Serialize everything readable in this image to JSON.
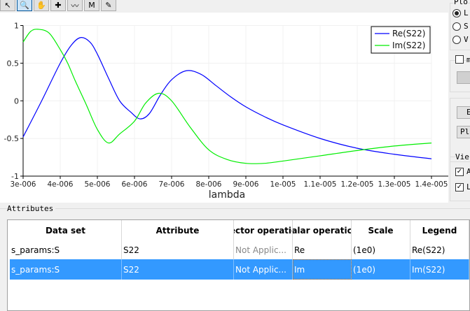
{
  "toolbar": {
    "tools": [
      {
        "name": "pointer",
        "glyph": "↖"
      },
      {
        "name": "zoom",
        "glyph": "🔍",
        "active": true
      },
      {
        "name": "pan",
        "glyph": "✋"
      },
      {
        "name": "zoom-box",
        "glyph": "✚"
      },
      {
        "name": "plot-style",
        "glyph": "〰"
      },
      {
        "name": "marker",
        "glyph": "M"
      },
      {
        "name": "pencil",
        "glyph": "✎"
      }
    ]
  },
  "chart_data": {
    "type": "line",
    "xlabel": "lambda",
    "ylabel": "",
    "xlim": [
      3e-06,
      1.4e-05
    ],
    "ylim": [
      -1,
      1
    ],
    "xticks": [
      "3e-006",
      "4e-006",
      "5e-006",
      "6e-006",
      "7e-006",
      "8e-006",
      "9e-006",
      "1e-005",
      "1.1e-005",
      "1.2e-005",
      "1.3e-005",
      "1.4e-005"
    ],
    "yticks": [
      "1",
      "0.5",
      "0",
      "-0.5",
      "-1"
    ],
    "grid": true,
    "legend": "top-right",
    "series": [
      {
        "name": "Re(S22)",
        "color": "#0000ff",
        "x": [
          3e-06,
          3.5e-06,
          4e-06,
          4.3e-06,
          4.55e-06,
          4.8e-06,
          5e-06,
          5.3e-06,
          5.6e-06,
          5.9e-06,
          6.15e-06,
          6.4e-06,
          6.7e-06,
          7e-06,
          7.4e-06,
          7.8e-06,
          8.2e-06,
          8.6e-06,
          9e-06,
          9.5e-06,
          1e-05,
          1.1e-05,
          1.2e-05,
          1.3e-05,
          1.4e-05
        ],
        "y": [
          -0.48,
          0.0,
          0.5,
          0.74,
          0.84,
          0.78,
          0.62,
          0.3,
          0.0,
          -0.15,
          -0.24,
          -0.17,
          0.08,
          0.28,
          0.4,
          0.35,
          0.2,
          0.05,
          -0.08,
          -0.21,
          -0.32,
          -0.5,
          -0.63,
          -0.71,
          -0.77
        ]
      },
      {
        "name": "Im(S22)",
        "color": "#00ee00",
        "x": [
          3e-06,
          3.2e-06,
          3.4e-06,
          3.7e-06,
          4e-06,
          4.2e-06,
          4.4e-06,
          4.7e-06,
          5e-06,
          5.3e-06,
          5.6e-06,
          6e-06,
          6.3e-06,
          6.65e-06,
          7e-06,
          7.5e-06,
          8e-06,
          8.5e-06,
          9e-06,
          9.5e-06,
          1e-05,
          1.1e-05,
          1.2e-05,
          1.3e-05,
          1.4e-05
        ],
        "y": [
          0.78,
          0.92,
          0.95,
          0.9,
          0.68,
          0.5,
          0.27,
          -0.05,
          -0.38,
          -0.56,
          -0.44,
          -0.27,
          -0.03,
          0.1,
          0.0,
          -0.35,
          -0.65,
          -0.78,
          -0.83,
          -0.83,
          -0.8,
          -0.73,
          -0.66,
          -0.6,
          -0.56
        ]
      }
    ]
  },
  "right_panel": {
    "group1_title": "Plo",
    "radios": [
      {
        "label": "L",
        "checked": true
      },
      {
        "label": "S",
        "checked": false
      },
      {
        "label": "V",
        "checked": false
      }
    ],
    "checkbox_label": "m",
    "button1": "E",
    "button2": "Plo",
    "view_title": "Vie",
    "view_checks": [
      {
        "label": "A",
        "checked": true
      },
      {
        "label": "L",
        "checked": true
      }
    ]
  },
  "attributes": {
    "title": "Attributes",
    "columns": [
      "Data set",
      "Attribute",
      "ector operatic",
      "alar operatic",
      "Scale",
      "Legend"
    ],
    "rows": [
      [
        "s_params:S",
        "S22",
        "Not Applic...",
        "Re",
        "(1e0)",
        "Re(S22)"
      ],
      [
        "s_params:S",
        "S22",
        "Not Applic...",
        "Im",
        "(1e0)",
        "Im(S22)"
      ]
    ],
    "selected_row": 1
  }
}
